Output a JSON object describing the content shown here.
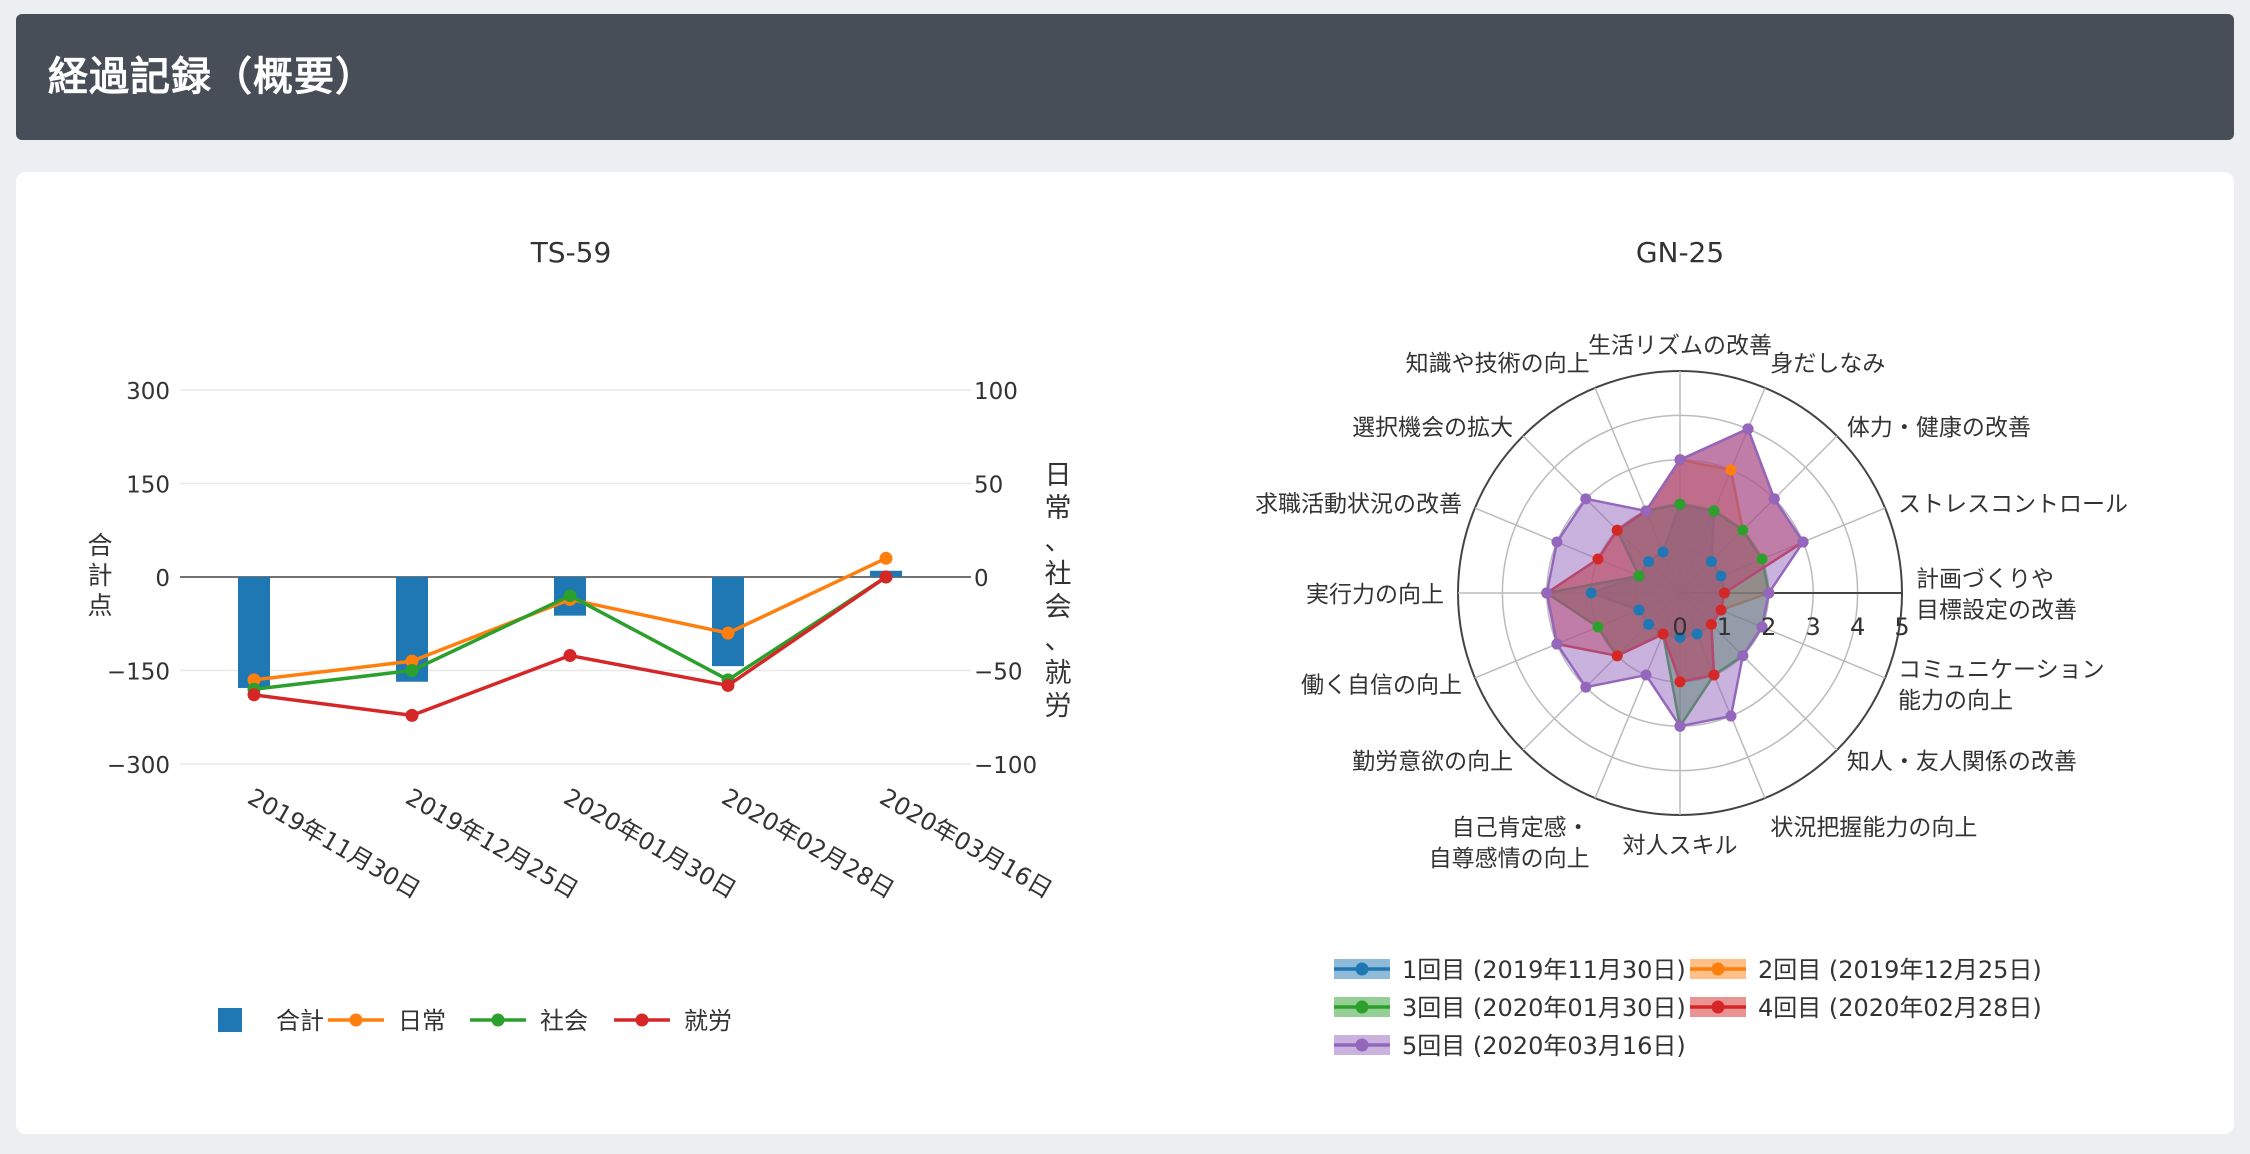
{
  "header": {
    "title": "経過記録（概要）"
  },
  "chart_data": [
    {
      "type": "bar+line",
      "title": "TS-59",
      "categories": [
        "2019年11月30日",
        "2019年12月25日",
        "2020年01月30日",
        "2020年02月28日",
        "2020年03月16日"
      ],
      "y_left": {
        "label": "合計点",
        "range": [
          -300,
          300
        ],
        "ticks": [
          "300",
          "150",
          "0",
          "−150",
          "−300"
        ]
      },
      "y_right": {
        "label": "日常、社会、就労",
        "range": [
          -100,
          100
        ],
        "ticks": [
          "100",
          "50",
          "0",
          "−50",
          "−100"
        ]
      },
      "series": [
        {
          "name": "合計",
          "kind": "bar",
          "axis": "left",
          "color": "#1f77b4",
          "values": [
            -178,
            -168,
            -62,
            -143,
            10
          ]
        },
        {
          "name": "日常",
          "kind": "line",
          "axis": "right",
          "color": "#ff7f0e",
          "values": [
            -55,
            -45,
            -12,
            -30,
            10
          ]
        },
        {
          "name": "社会",
          "kind": "line",
          "axis": "right",
          "color": "#2ca02c",
          "values": [
            -60,
            -50,
            -10,
            -55,
            0
          ]
        },
        {
          "name": "就労",
          "kind": "line",
          "axis": "right",
          "color": "#d62728",
          "values": [
            -63,
            -74,
            -42,
            -58,
            0
          ]
        }
      ],
      "legend_position": "bottom-left"
    },
    {
      "type": "radar",
      "title": "GN-25",
      "radial_range": [
        0,
        5
      ],
      "radial_ticks": [
        "0",
        "1",
        "2",
        "3",
        "4",
        "5"
      ],
      "axes": [
        "計画づくりや\n目標設定の改善",
        "ストレスコントロール",
        "体力・健康の改善",
        "身だしなみ",
        "生活リズムの改善",
        "知識や技術の向上",
        "選択機会の拡大",
        "求職活動状況の改善",
        "実行力の向上",
        "働く自信の向上",
        "勤労意欲の向上",
        "自己肯定感・\n自尊感情の向上",
        "対人スキル",
        "状況把握能力の向上",
        "知人・友人関係の改善",
        "コミュニケーション\n能力の向上"
      ],
      "series": [
        {
          "name": "1回目 (2019年11月30日)",
          "color": "#1f77b4",
          "values": [
            1,
            1,
            1,
            2,
            2,
            1,
            1,
            1,
            2,
            1,
            1,
            1,
            1,
            1,
            1,
            1
          ]
        },
        {
          "name": "2回目 (2019年12月25日)",
          "color": "#ff7f0e",
          "values": [
            2,
            2,
            2,
            3,
            3,
            2,
            2,
            2,
            3,
            2,
            2,
            1,
            2,
            2,
            1,
            1
          ]
        },
        {
          "name": "3回目 (2020年01月30日)",
          "color": "#2ca02c",
          "values": [
            2,
            2,
            2,
            2,
            2,
            2,
            2,
            1,
            3,
            2,
            2,
            1,
            3,
            2,
            2,
            2
          ]
        },
        {
          "name": "4回目 (2020年02月28日)",
          "color": "#d62728",
          "values": [
            1,
            3,
            3,
            4,
            3,
            2,
            2,
            2,
            3,
            3,
            2,
            1,
            2,
            2,
            1,
            1
          ]
        },
        {
          "name": "5回目 (2020年03月16日)",
          "color": "#9467bd",
          "values": [
            2,
            3,
            3,
            4,
            3,
            2,
            3,
            3,
            3,
            3,
            3,
            2,
            3,
            3,
            2,
            2
          ]
        }
      ],
      "legend_position": "bottom"
    }
  ]
}
